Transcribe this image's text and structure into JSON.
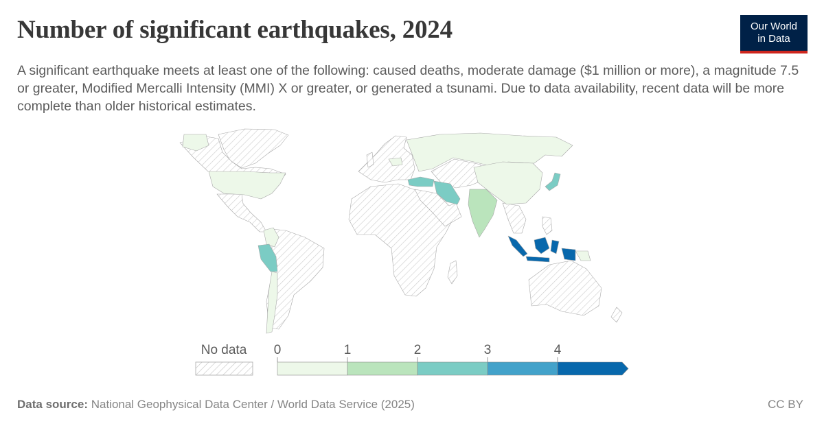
{
  "header": {
    "title": "Number of significant earthquakes, 2024",
    "subtitle": "A significant earthquake meets at least one of the following: caused deaths, moderate damage ($1 million or more), a magnitude 7.5 or greater, Modified Mercalli Intensity (MMI) X or greater, or generated a tsunami. Due to data availability, recent data will be more complete than older historical estimates."
  },
  "logo": {
    "line1": "Our World",
    "line2": "in Data"
  },
  "legend": {
    "no_data_label": "No data",
    "ticks": [
      "0",
      "1",
      "2",
      "3",
      "4"
    ],
    "colors": [
      "#edf8e9",
      "#bae4bc",
      "#7bccc4",
      "#43a2ca",
      "#0868ac"
    ]
  },
  "map_data": {
    "regions": [
      {
        "name": "Indonesia",
        "value": 4,
        "color": "#0868ac"
      },
      {
        "name": "Iran",
        "value": 2,
        "color": "#7bccc4"
      },
      {
        "name": "Turkey",
        "value": 2,
        "color": "#7bccc4"
      },
      {
        "name": "Japan",
        "value": 2,
        "color": "#7bccc4"
      },
      {
        "name": "Peru",
        "value": 2,
        "color": "#7bccc4"
      },
      {
        "name": "India",
        "value": 1,
        "color": "#bae4bc"
      },
      {
        "name": "China",
        "value": 0,
        "color": "#edf8e9"
      },
      {
        "name": "Russia",
        "value": 0,
        "color": "#edf8e9"
      },
      {
        "name": "United States",
        "value": 0,
        "color": "#edf8e9"
      },
      {
        "name": "Chile",
        "value": 0,
        "color": "#edf8e9"
      }
    ]
  },
  "footer": {
    "source_label": "Data source:",
    "source_text": " National Geophysical Data Center / World Data Service (2025)",
    "license": "CC BY"
  }
}
